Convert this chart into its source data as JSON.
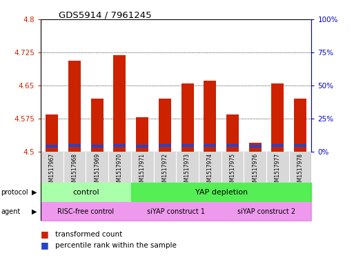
{
  "title": "GDS5914 / 7961245",
  "samples": [
    "GSM1517967",
    "GSM1517968",
    "GSM1517969",
    "GSM1517970",
    "GSM1517971",
    "GSM1517972",
    "GSM1517973",
    "GSM1517974",
    "GSM1517975",
    "GSM1517976",
    "GSM1517977",
    "GSM1517978"
  ],
  "red_tops": [
    4.585,
    4.705,
    4.62,
    4.718,
    4.578,
    4.62,
    4.655,
    4.66,
    4.585,
    4.52,
    4.655,
    4.62
  ],
  "blue_bottoms": [
    4.509,
    4.511,
    4.509,
    4.511,
    4.509,
    4.511,
    4.511,
    4.511,
    4.511,
    4.509,
    4.511,
    4.511
  ],
  "blue_tops": [
    4.515,
    4.517,
    4.515,
    4.517,
    4.515,
    4.517,
    4.517,
    4.517,
    4.517,
    4.515,
    4.517,
    4.517
  ],
  "base": 4.5,
  "ylim": [
    4.5,
    4.8
  ],
  "y_ticks_left": [
    4.5,
    4.575,
    4.65,
    4.725,
    4.8
  ],
  "y_ticks_right": [
    0,
    25,
    50,
    75,
    100
  ],
  "bar_color": "#cc2200",
  "blue_color": "#2244cc",
  "protocol_labels": [
    "control",
    "YAP depletion"
  ],
  "protocol_color_ctrl": "#aaffaa",
  "protocol_color_yap": "#55ee55",
  "agent_labels": [
    "RISC-free control",
    "siYAP construct 1",
    "siYAP construct 2"
  ],
  "agent_color": "#ee99ee",
  "legend_red": "transformed count",
  "legend_blue": "percentile rank within the sample",
  "bar_width": 0.55,
  "left_axis_color": "#cc2200",
  "right_axis_color": "#0000cc"
}
